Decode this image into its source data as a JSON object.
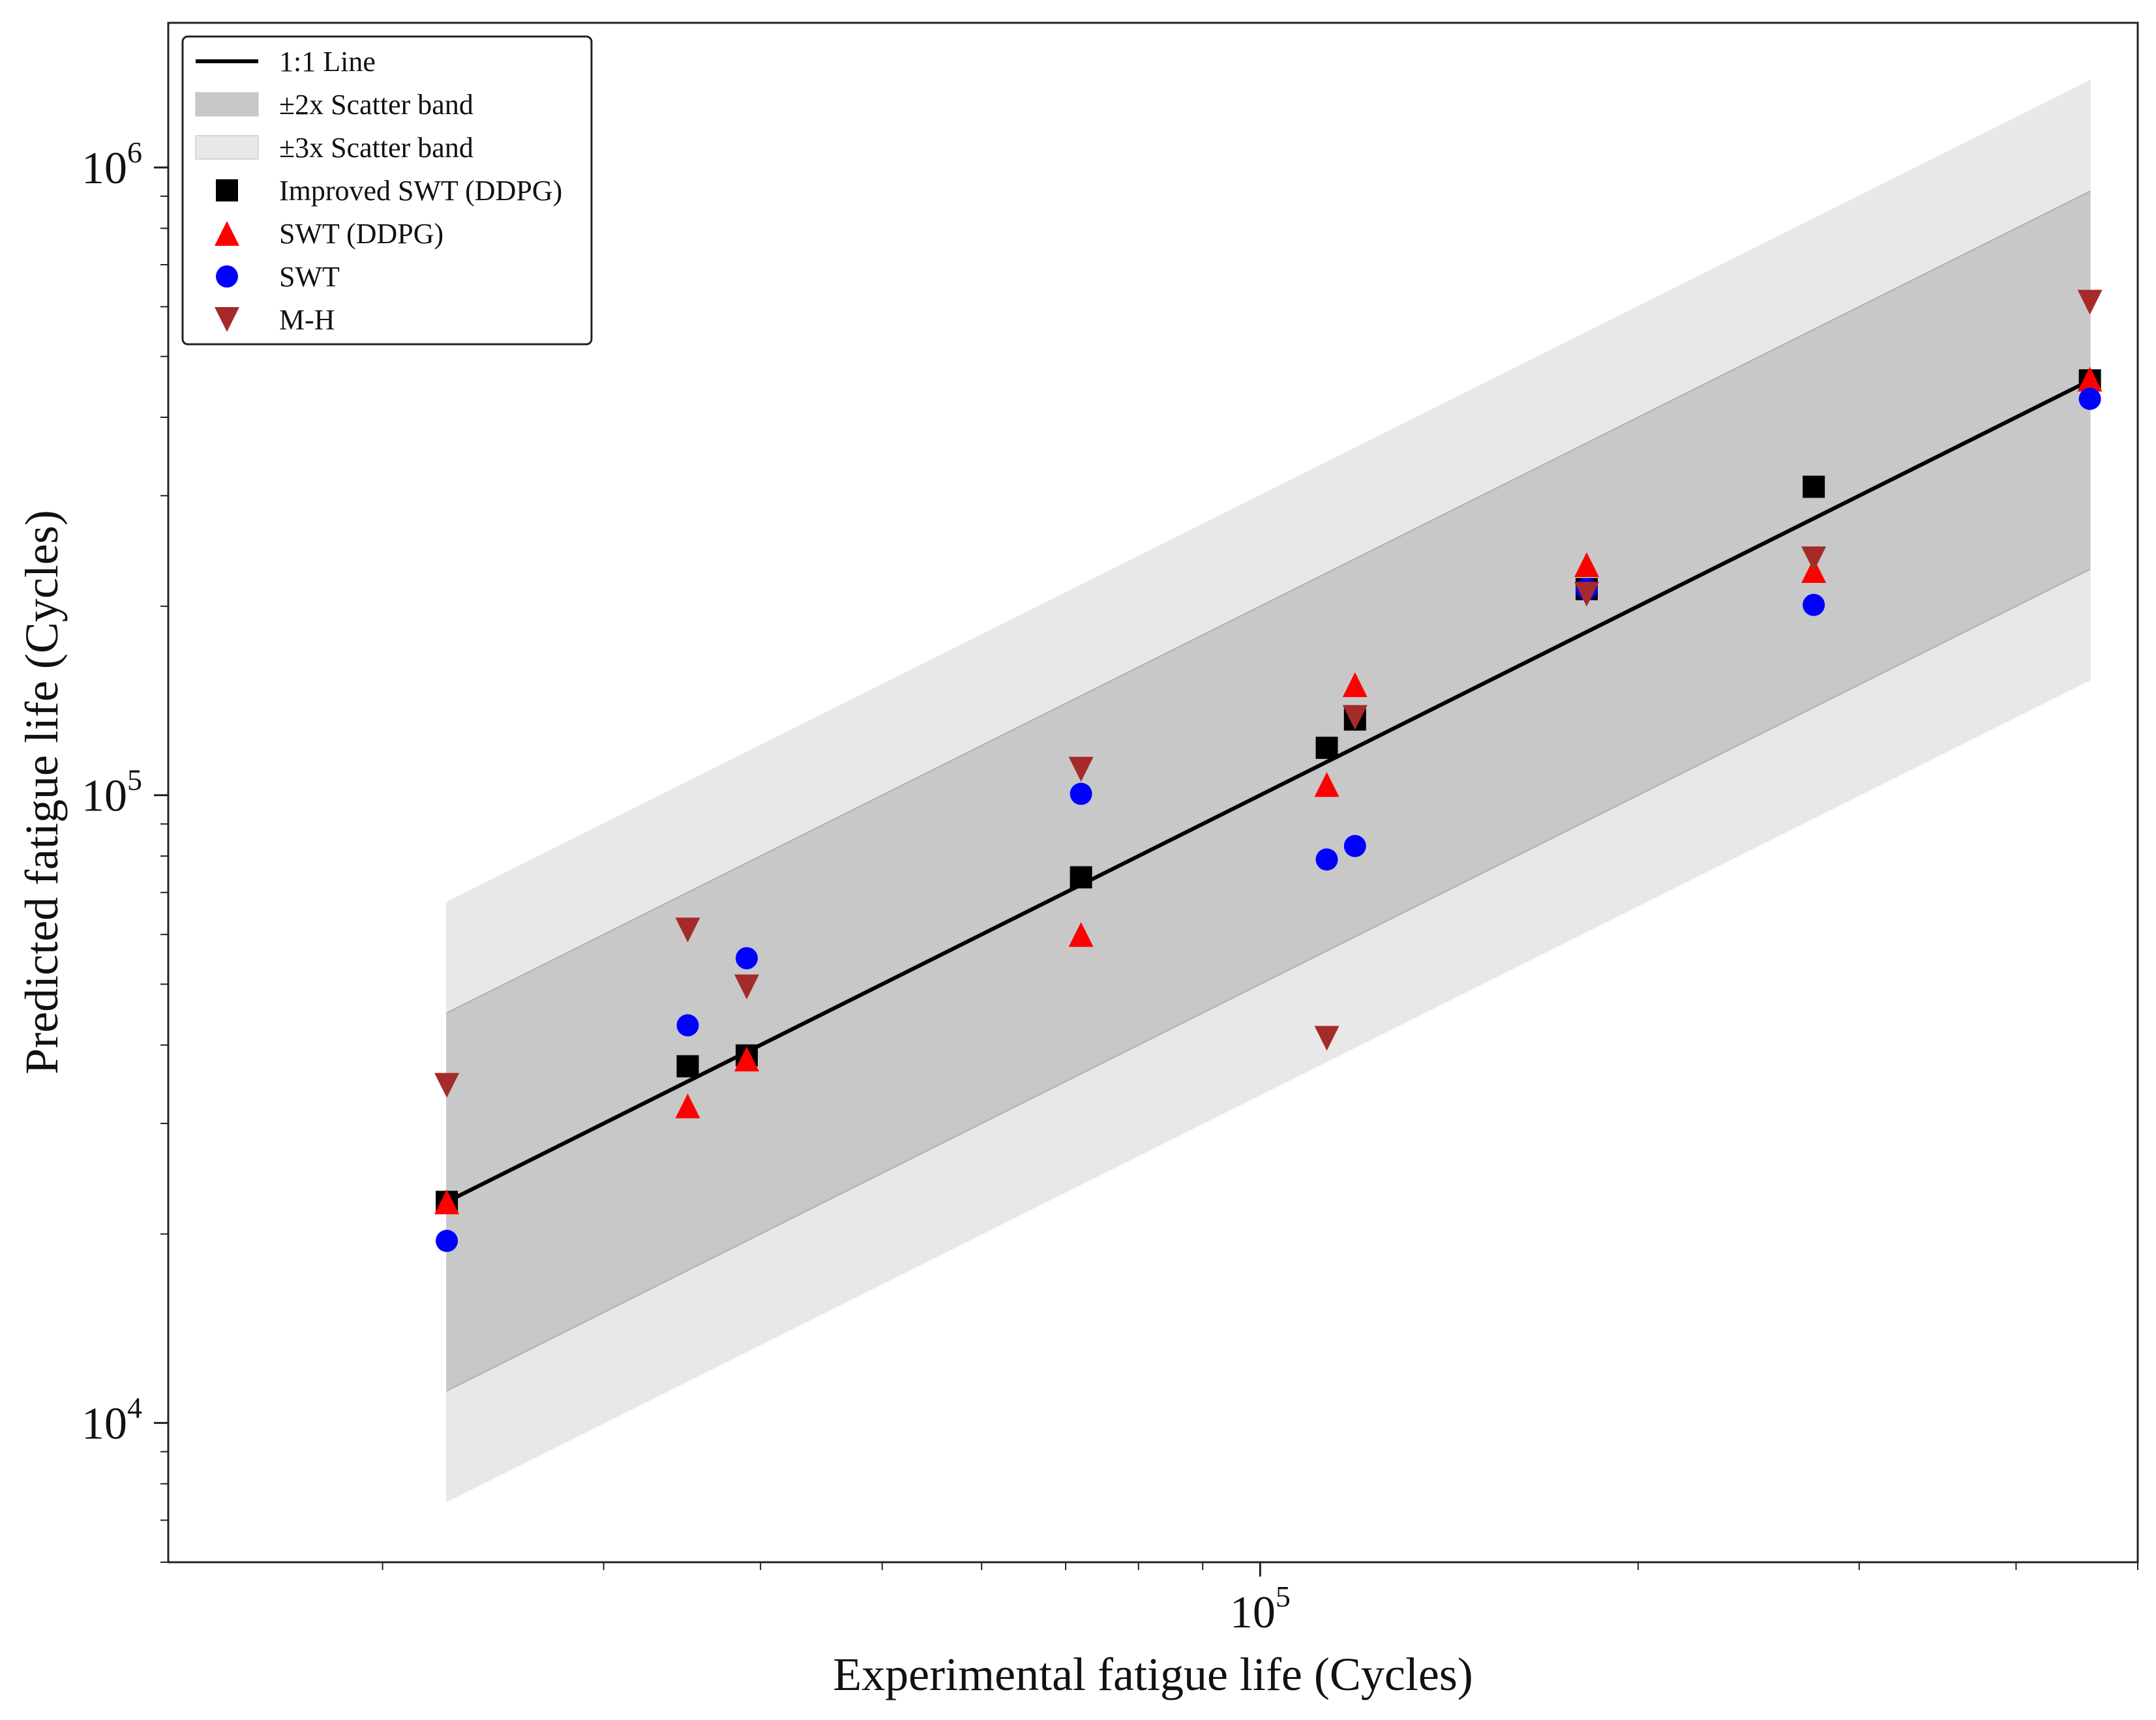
{
  "chart_data": {
    "type": "scatter",
    "title": "",
    "xlabel": "Experimental fatigue life (Cycles)",
    "ylabel": "Predicted fatigue life (Cycles)",
    "x_scale": "log",
    "y_scale": "log",
    "xlim": [
      13500,
      500000
    ],
    "ylim": [
      6000,
      1700000
    ],
    "x_tick_labels": [
      {
        "base": "10",
        "exp": "5",
        "value": 100000
      }
    ],
    "y_tick_labels": [
      {
        "base": "10",
        "exp": "4",
        "value": 10000
      },
      {
        "base": "10",
        "exp": "5",
        "value": 100000
      },
      {
        "base": "10",
        "exp": "6",
        "value": 1000000
      }
    ],
    "grid": false,
    "legend_position": "top-left",
    "legend": [
      {
        "label": "1:1 Line",
        "kind": "line",
        "color": "#000000"
      },
      {
        "label": "±2x Scatter band",
        "kind": "band",
        "color": "#c8c8c8"
      },
      {
        "label": "±3x Scatter band",
        "kind": "band",
        "color": "#e8e8e8"
      },
      {
        "label": "Improved SWT (DDPG)",
        "kind": "square",
        "color": "#000000"
      },
      {
        "label": "SWT (DDPG)",
        "kind": "triangle-up",
        "color": "#ff0000"
      },
      {
        "label": "SWT",
        "kind": "circle",
        "color": "#0000ff"
      },
      {
        "label": "M-H",
        "kind": "triangle-down",
        "color": "#a52a2a"
      }
    ],
    "reference_line": {
      "x": [
        22500,
        458000
      ],
      "y": [
        22500,
        458000
      ]
    },
    "bands": {
      "x_range": [
        22500,
        458000
      ],
      "factor_2": 2,
      "factor_3": 3
    },
    "series": [
      {
        "name": "Improved SWT (DDPG)",
        "marker": "square",
        "color": "#000000",
        "points": [
          {
            "x": 22500,
            "y": 22500
          },
          {
            "x": 35000,
            "y": 37000
          },
          {
            "x": 39000,
            "y": 38500
          },
          {
            "x": 72000,
            "y": 74000
          },
          {
            "x": 113000,
            "y": 119000
          },
          {
            "x": 119000,
            "y": 132000
          },
          {
            "x": 182000,
            "y": 213000
          },
          {
            "x": 276000,
            "y": 310000
          },
          {
            "x": 458000,
            "y": 458000
          }
        ]
      },
      {
        "name": "SWT (DDPG)",
        "marker": "triangle-up",
        "color": "#ff0000",
        "points": [
          {
            "x": 22500,
            "y": 22500
          },
          {
            "x": 35000,
            "y": 32000
          },
          {
            "x": 39000,
            "y": 38000
          },
          {
            "x": 72000,
            "y": 60000
          },
          {
            "x": 113000,
            "y": 104000
          },
          {
            "x": 119000,
            "y": 150000
          },
          {
            "x": 182000,
            "y": 233000
          },
          {
            "x": 276000,
            "y": 228000
          },
          {
            "x": 458000,
            "y": 460000
          }
        ]
      },
      {
        "name": "SWT",
        "marker": "circle",
        "color": "#0000ff",
        "points": [
          {
            "x": 22500,
            "y": 19500
          },
          {
            "x": 35000,
            "y": 43000
          },
          {
            "x": 39000,
            "y": 55000
          },
          {
            "x": 72000,
            "y": 100500
          },
          {
            "x": 113000,
            "y": 79000
          },
          {
            "x": 119000,
            "y": 83000
          },
          {
            "x": 182000,
            "y": 213000
          },
          {
            "x": 276000,
            "y": 201000
          },
          {
            "x": 458000,
            "y": 428000
          }
        ]
      },
      {
        "name": "M-H",
        "marker": "triangle-down",
        "color": "#a52a2a",
        "points": [
          {
            "x": 22500,
            "y": 34500
          },
          {
            "x": 35000,
            "y": 61000
          },
          {
            "x": 39000,
            "y": 49500
          },
          {
            "x": 72000,
            "y": 110000
          },
          {
            "x": 113000,
            "y": 41000
          },
          {
            "x": 119000,
            "y": 133000
          },
          {
            "x": 182000,
            "y": 209000
          },
          {
            "x": 276000,
            "y": 238000
          },
          {
            "x": 458000,
            "y": 610000
          }
        ]
      }
    ]
  }
}
